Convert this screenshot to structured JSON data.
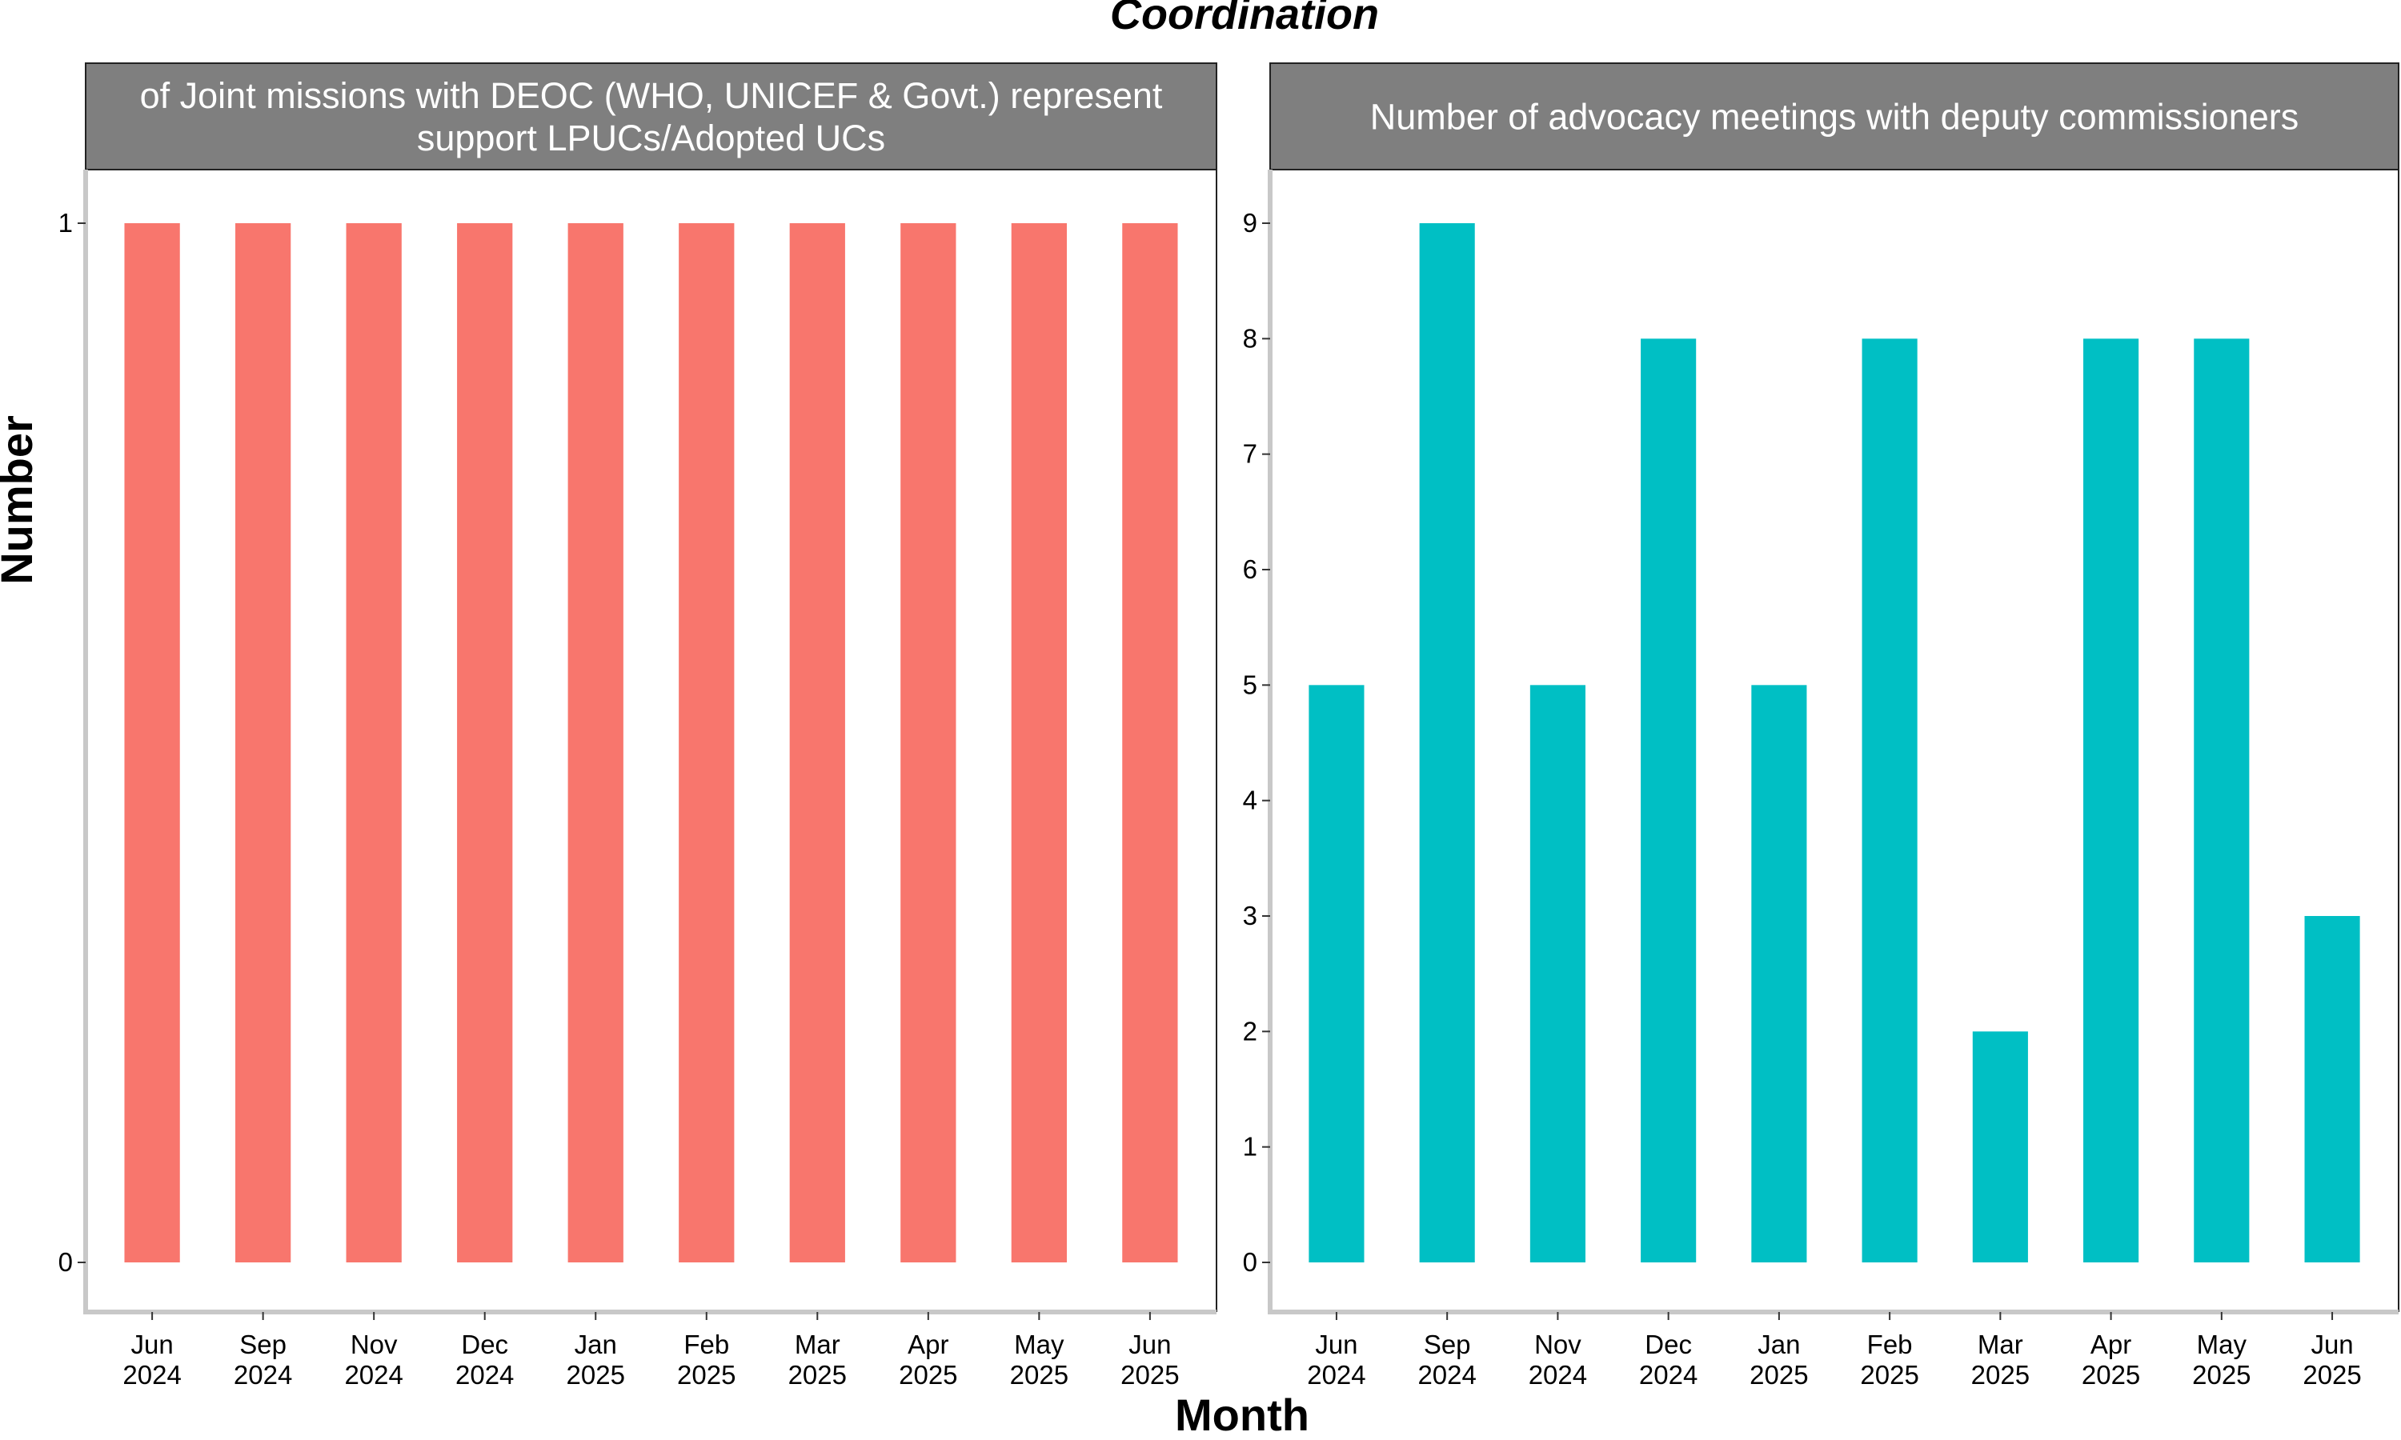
{
  "chart_title": "Coordination",
  "xlabel": "Month",
  "ylabel": "Number",
  "colors": {
    "left": "#F8766D",
    "right": "#00BFC4",
    "strip": "#7F7F7F",
    "axis": "#C8C8C8"
  },
  "chart_data": [
    {
      "type": "bar",
      "panel_title": [
        "of Joint missions with DEOC (WHO, UNICEF & Govt.) represent",
        "support LPUCs/Adopted UCs"
      ],
      "categories": [
        [
          "Jun",
          "2024"
        ],
        [
          "Sep",
          "2024"
        ],
        [
          "Nov",
          "2024"
        ],
        [
          "Dec",
          "2024"
        ],
        [
          "Jan",
          "2025"
        ],
        [
          "Feb",
          "2025"
        ],
        [
          "Mar",
          "2025"
        ],
        [
          "Apr",
          "2025"
        ],
        [
          "May",
          "2025"
        ],
        [
          "Jun",
          "2025"
        ]
      ],
      "values": [
        1,
        1,
        1,
        1,
        1,
        1,
        1,
        1,
        1,
        1
      ],
      "ylim": [
        0,
        1
      ],
      "yticks": [
        0,
        1
      ]
    },
    {
      "type": "bar",
      "panel_title": [
        "Number of advocacy meetings with deputy commissioners"
      ],
      "categories": [
        [
          "Jun",
          "2024"
        ],
        [
          "Sep",
          "2024"
        ],
        [
          "Nov",
          "2024"
        ],
        [
          "Dec",
          "2024"
        ],
        [
          "Jan",
          "2025"
        ],
        [
          "Feb",
          "2025"
        ],
        [
          "Mar",
          "2025"
        ],
        [
          "Apr",
          "2025"
        ],
        [
          "May",
          "2025"
        ],
        [
          "Jun",
          "2025"
        ]
      ],
      "values": [
        5,
        9,
        5,
        8,
        5,
        8,
        2,
        8,
        8,
        3
      ],
      "ylim": [
        0,
        9
      ],
      "yticks": [
        0,
        1,
        2,
        3,
        4,
        5,
        6,
        7,
        8,
        9
      ]
    }
  ]
}
